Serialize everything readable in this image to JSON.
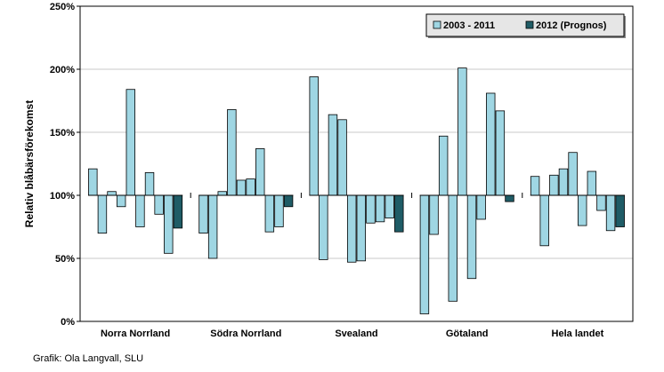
{
  "chart_data": {
    "type": "bar",
    "ylabel": "Relativ blåbärsförekomst",
    "ylim": [
      0,
      250
    ],
    "baseline": 100,
    "yticks": [
      0,
      50,
      100,
      150,
      200,
      250
    ],
    "ytick_labels": [
      "0%",
      "50%",
      "100%",
      "150%",
      "200%",
      "250%"
    ],
    "gridlines": true,
    "legend_position": "top-right",
    "colors": {
      "history": "#9fd6e3",
      "forecast": "#1f5c66",
      "grid": "#c8c8c8",
      "zero": "#000000"
    },
    "series": [
      {
        "name": "2003 - 2011",
        "color_key": "history"
      },
      {
        "name": "2012 (Prognos)",
        "color_key": "forecast"
      }
    ],
    "groups": [
      {
        "label": "Norra Norrland",
        "history": [
          121,
          70,
          103,
          91,
          184,
          75,
          118,
          85,
          54
        ],
        "forecast": 74
      },
      {
        "label": "Södra Norrland",
        "history": [
          70,
          50,
          103,
          168,
          112,
          113,
          137,
          71,
          75
        ],
        "forecast": 91
      },
      {
        "label": "Svealand",
        "history": [
          194,
          49,
          164,
          160,
          47,
          48,
          78,
          79,
          82
        ],
        "forecast": 71
      },
      {
        "label": "Götaland",
        "history": [
          6,
          69,
          147,
          16,
          201,
          34,
          81,
          181,
          167
        ],
        "forecast": 95
      },
      {
        "label": "Hela landet",
        "history": [
          115,
          60,
          116,
          121,
          134,
          76,
          119,
          88,
          72
        ],
        "forecast": 75
      }
    ]
  },
  "credit": "Grafik: Ola Langvall, SLU"
}
